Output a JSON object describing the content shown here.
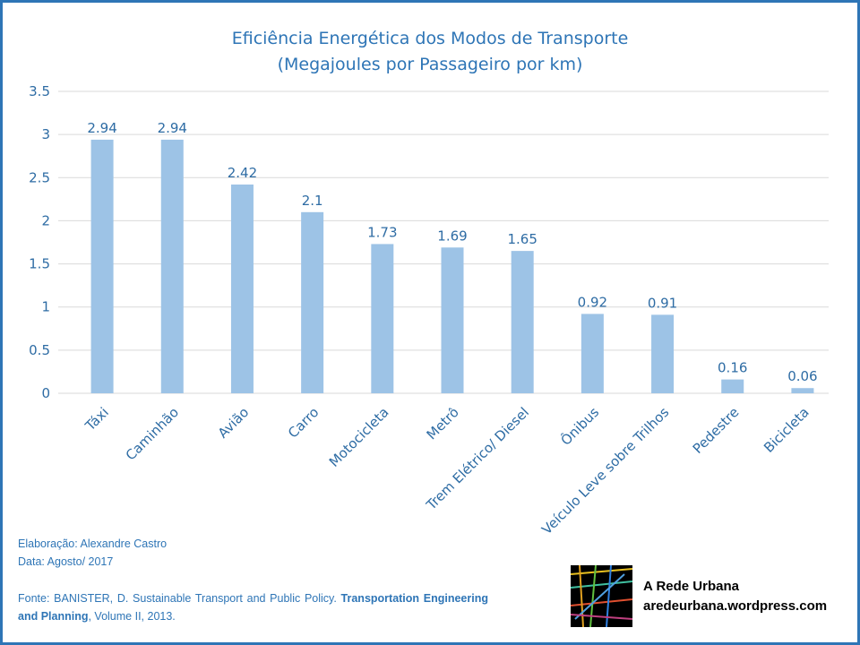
{
  "chart_data": {
    "type": "bar",
    "title": "Eficiência Energética dos Modos de Transporte",
    "subtitle": "(Megajoules por Passageiro por km)",
    "categories": [
      "Táxi",
      "Caminhão",
      "Avião",
      "Carro",
      "Motocicleta",
      "Metrô",
      "Trem Elétrico/ Diesel",
      "Ônibus",
      "Veículo Leve sobre Trilhos",
      "Pedestre",
      "Bicicleta"
    ],
    "values": [
      2.94,
      2.94,
      2.42,
      2.1,
      1.73,
      1.69,
      1.65,
      0.92,
      0.91,
      0.16,
      0.06
    ],
    "data_labels": [
      "2.94",
      "2.94",
      "2.42",
      "2.1",
      "1.73",
      "1.69",
      "1.65",
      "0.92",
      "0.91",
      "0.16",
      "0.06"
    ],
    "ylim": [
      0,
      3.5
    ],
    "yticks": [
      "0",
      "0.5",
      "1",
      "1.5",
      "2",
      "2.5",
      "3",
      "3.5"
    ],
    "grid": true,
    "bar_color": "#9dc3e6",
    "text_color": "#2e75b6"
  },
  "footer": {
    "elaboracao": "Elaboração: Alexandre Castro",
    "data": "Data: Agosto/ 2017",
    "fonte_prefix": "Fonte: BANISTER, D. Sustainable Transport and Public Policy. ",
    "fonte_bold": "Transportation Engineering and Planning",
    "fonte_suffix": ", Volume II, 2013."
  },
  "brand": {
    "name": "A Rede Urbana",
    "url": "aredeurbana.wordpress.com"
  }
}
